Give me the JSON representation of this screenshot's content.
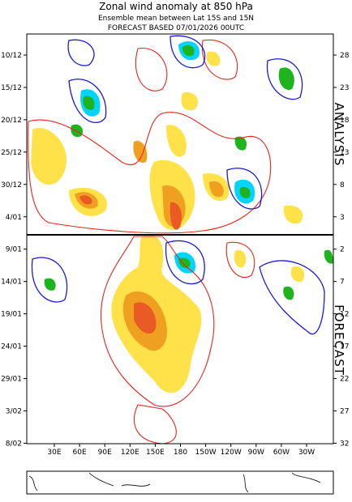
{
  "chart_data": {
    "type": "hovmoller",
    "title": "Zonal wind anomaly at 850 hPa",
    "subtitle": "Ensemble mean between  Lat 15S and 15N",
    "forecast_note": "FORECAST  BASED 07/01/2026 00UTC",
    "y_dates": [
      "10/12",
      "15/12",
      "20/12",
      "25/12",
      "30/12",
      "4/01",
      "9/01",
      "14/01",
      "19/01",
      "24/01",
      "29/01",
      "3/02",
      "8/02"
    ],
    "y_days": [
      28,
      23,
      18,
      13,
      8,
      3,
      2,
      7,
      12,
      17,
      22,
      27,
      32
    ],
    "x_longitudes": [
      "30E",
      "60E",
      "90E",
      "120E",
      "150E",
      "180",
      "150W",
      "120W",
      "90W",
      "60W",
      "30W"
    ],
    "analysis_label": "ANALYSIS",
    "forecast_label": "FORECAST"
  }
}
